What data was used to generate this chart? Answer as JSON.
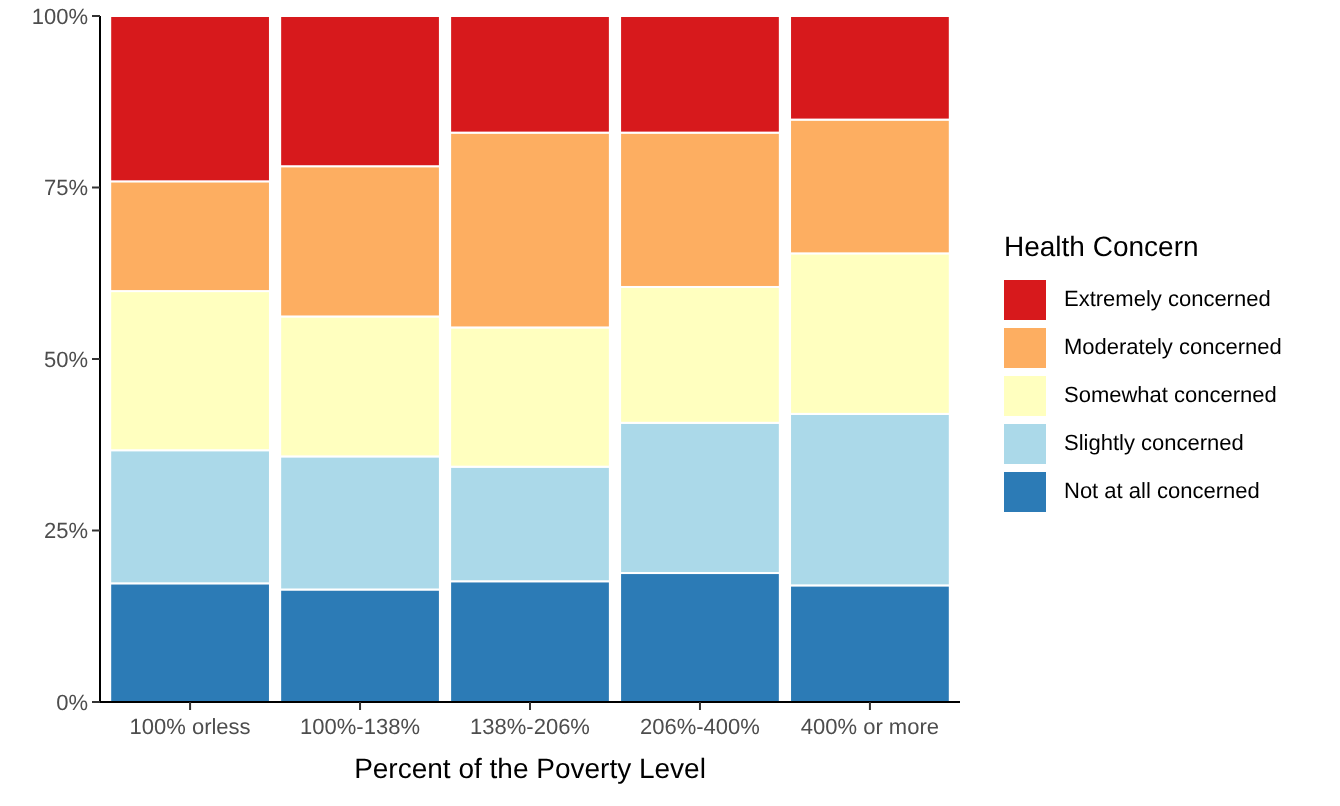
{
  "chart_data": {
    "type": "bar",
    "stacked": true,
    "xlabel": "Percent of the Poverty Level",
    "legend_title": "Health Concern",
    "legend": "right",
    "categories": [
      "100% orless",
      "100%-138%",
      "138%-206%",
      "206%-400%",
      "400% or more"
    ],
    "series": [
      {
        "name": "Not at all concerned",
        "color": "#2c7bb6",
        "values": [
          17.3,
          16.4,
          17.6,
          18.8,
          17.0
        ]
      },
      {
        "name": "Slightly concerned",
        "color": "#abd9e9",
        "values": [
          19.4,
          19.4,
          16.7,
          21.9,
          25.0
        ]
      },
      {
        "name": "Somewhat concerned",
        "color": "#ffffbf",
        "values": [
          23.2,
          20.4,
          20.3,
          19.8,
          23.4
        ]
      },
      {
        "name": "Moderately concerned",
        "color": "#fdae61",
        "values": [
          16.0,
          21.9,
          28.4,
          22.5,
          19.5
        ]
      },
      {
        "name": "Extremely concerned",
        "color": "#d7191c",
        "values": [
          24.1,
          21.9,
          17.0,
          17.0,
          15.1
        ]
      }
    ],
    "ylim": [
      0,
      100
    ],
    "yticks": [
      {
        "value": 0,
        "label": "0%"
      },
      {
        "value": 25,
        "label": "25%"
      },
      {
        "value": 50,
        "label": "50%"
      },
      {
        "value": 75,
        "label": "75%"
      },
      {
        "value": 100,
        "label": "100%"
      }
    ],
    "grid": false
  }
}
